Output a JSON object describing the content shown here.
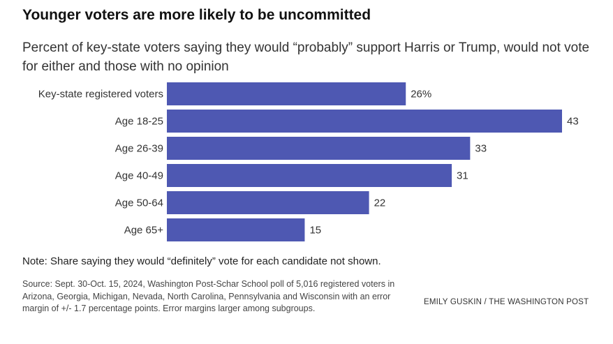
{
  "chart_data": {
    "type": "bar",
    "orientation": "horizontal",
    "title": "Younger voters are more likely to be uncommitted",
    "subtitle": "Percent of key-state voters saying they would “probably” support Harris or Trump, would not vote for either and those with no opinion",
    "categories": [
      "Key-state registered voters",
      "Age 18-25",
      "Age 26-39",
      "Age 40-49",
      "Age 50-64",
      "Age 65+"
    ],
    "values": [
      26,
      43,
      33,
      31,
      22,
      15
    ],
    "value_labels": [
      "26%",
      "43",
      "33",
      "31",
      "22",
      "15"
    ],
    "xlim": [
      0,
      43
    ],
    "grid": false,
    "bar_color": "#4e58b2"
  },
  "note": "Note: Share saying they would “definitely” vote for each candidate not shown.",
  "source": "Source: Sept. 30-Oct. 15, 2024, Washington Post-Schar School poll of 5,016 registered voters in Arizona, Georgia, Michigan, Nevada, North Carolina, Pennsylvania and Wisconsin with an error margin of +/- 1.7 percentage points. Error margins larger among subgroups.",
  "credit": "EMILY GUSKIN / THE WASHINGTON POST"
}
